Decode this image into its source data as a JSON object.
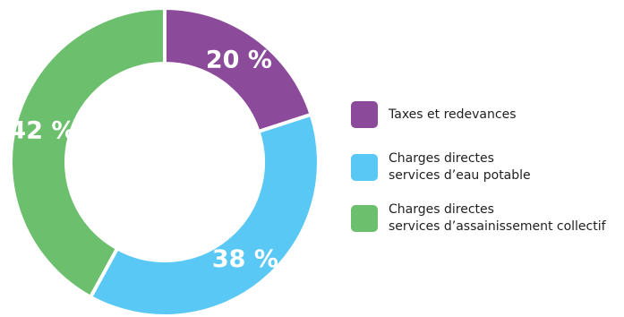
{
  "chart_data": {
    "type": "pie",
    "variant": "donut",
    "categories": [
      "Taxes et redevances",
      "Charges directes services d’eau potable",
      "Charges directes services d’assainissement collectif"
    ],
    "values": [
      20,
      38,
      42
    ],
    "value_labels": [
      "20 %",
      "38 %",
      "42 %"
    ],
    "unit": "%",
    "colors": [
      "#8c4a9b",
      "#5ac8f5",
      "#6cbf6c"
    ],
    "legend_placement": "right",
    "legend": [
      {
        "lines": [
          "Taxes et redevances"
        ],
        "color": "#8c4a9b"
      },
      {
        "lines": [
          "Charges directes",
          "services d’eau potable"
        ],
        "color": "#5ac8f5"
      },
      {
        "lines": [
          "Charges directes",
          "services d’assainissement collectif"
        ],
        "color": "#6cbf6c"
      }
    ]
  }
}
